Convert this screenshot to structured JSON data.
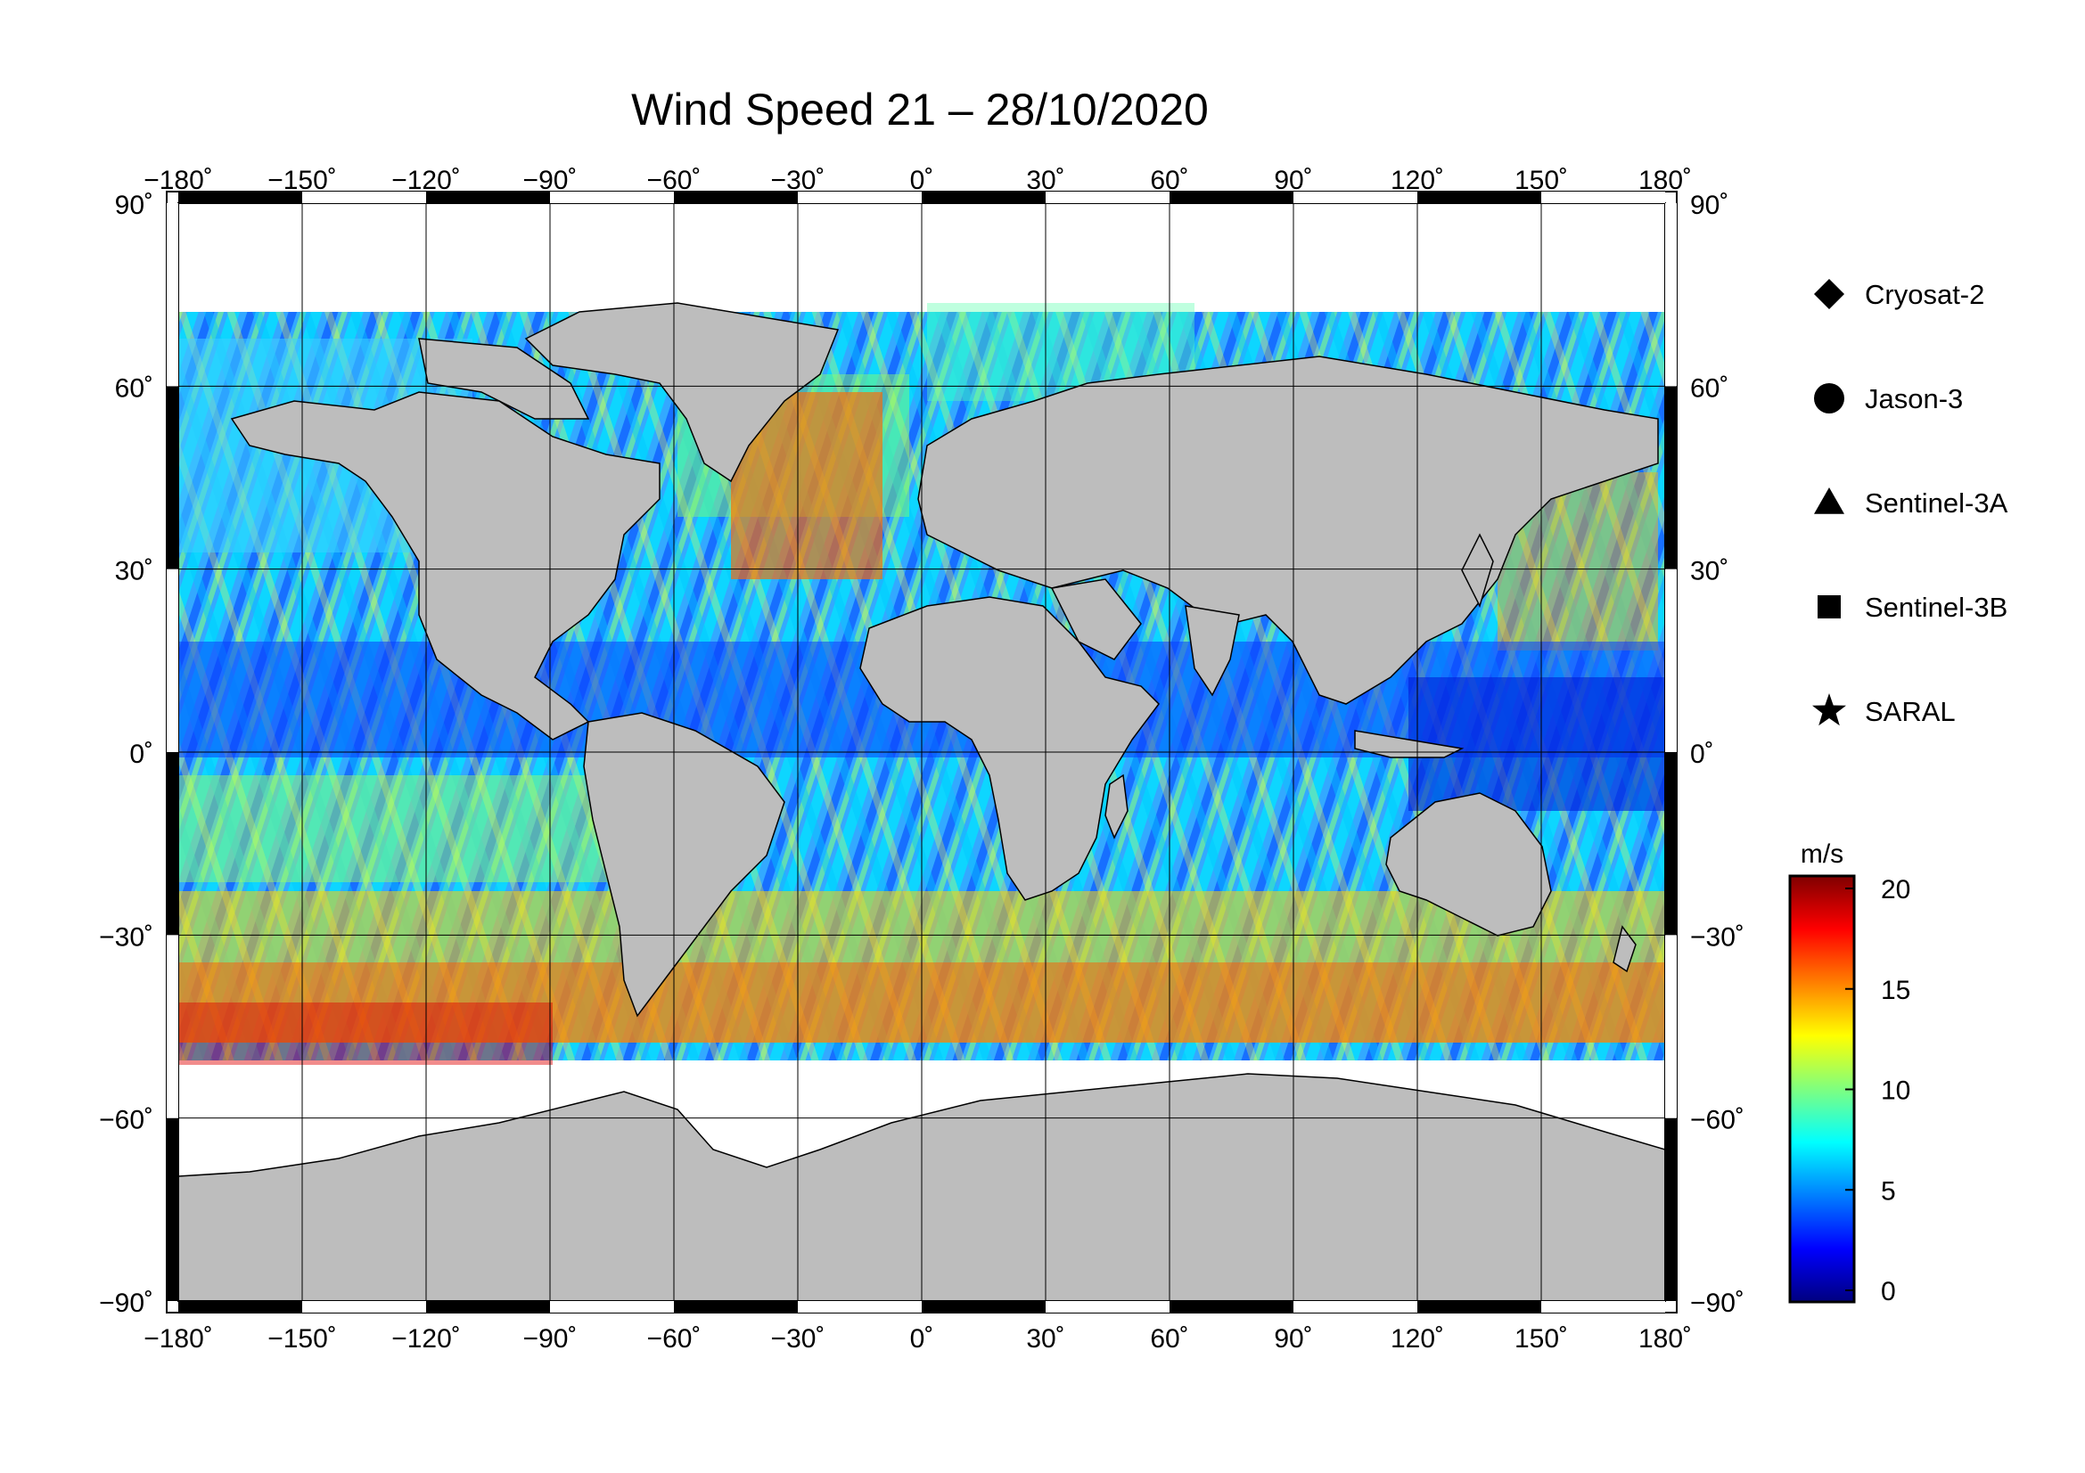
{
  "title": "Wind Speed 21 – 28/10/2020",
  "map": {
    "lon_range": [
      -180,
      180
    ],
    "lat_range": [
      -90,
      90
    ],
    "lon_ticks": [
      -180,
      -150,
      -120,
      -90,
      -60,
      -30,
      0,
      30,
      60,
      90,
      120,
      150,
      180
    ],
    "lat_ticks": [
      -90,
      -60,
      -30,
      0,
      30,
      60,
      90
    ],
    "projection": "equirectangular",
    "grid": true,
    "colors": {
      "land": "#bdbdbd",
      "no_data": "#ffffff",
      "frame": "#000000"
    }
  },
  "legend": {
    "placement": "right",
    "items": [
      {
        "symbol": "diamond",
        "label": "Cryosat-2"
      },
      {
        "symbol": "circle",
        "label": "Jason-3"
      },
      {
        "symbol": "triangle",
        "label": "Sentinel-3A"
      },
      {
        "symbol": "square",
        "label": "Sentinel-3B"
      },
      {
        "symbol": "star",
        "label": "SARAL"
      }
    ]
  },
  "colorbar": {
    "unit": "m/s",
    "range": [
      0,
      20
    ],
    "ticks": [
      0,
      5,
      10,
      15,
      20
    ],
    "colormap": "jet",
    "colors": [
      "#00007f",
      "#0000ff",
      "#007fff",
      "#00ffff",
      "#7fff7f",
      "#ffff00",
      "#ff7f00",
      "#ff0000",
      "#7f0000"
    ]
  }
}
